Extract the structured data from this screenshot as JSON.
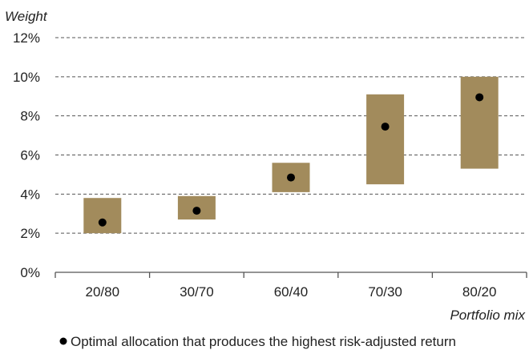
{
  "chart_data": {
    "type": "bar",
    "ylabel": "Weight",
    "xlabel": "Portfolio mix",
    "categories": [
      "20/80",
      "30/70",
      "60/40",
      "70/30",
      "80/20"
    ],
    "ranges": [
      {
        "low": 2.0,
        "high": 3.8
      },
      {
        "low": 2.7,
        "high": 3.9
      },
      {
        "low": 4.1,
        "high": 5.6
      },
      {
        "low": 4.5,
        "high": 9.1
      },
      {
        "low": 5.3,
        "high": 10.0
      }
    ],
    "optimal": [
      2.55,
      3.15,
      4.85,
      7.45,
      8.95
    ],
    "ylim": [
      0,
      12
    ],
    "yticks": [
      "0%",
      "2%",
      "4%",
      "6%",
      "8%",
      "10%",
      "12%"
    ],
    "ytick_values": [
      0,
      2,
      4,
      6,
      8,
      10,
      12
    ],
    "grid": true,
    "legend": {
      "label": "Optimal allocation that produces the highest risk-adjusted return",
      "position": "bottom"
    },
    "colors": {
      "bar": "#a28b5c",
      "marker": "#000000",
      "grid": "#555555"
    }
  }
}
